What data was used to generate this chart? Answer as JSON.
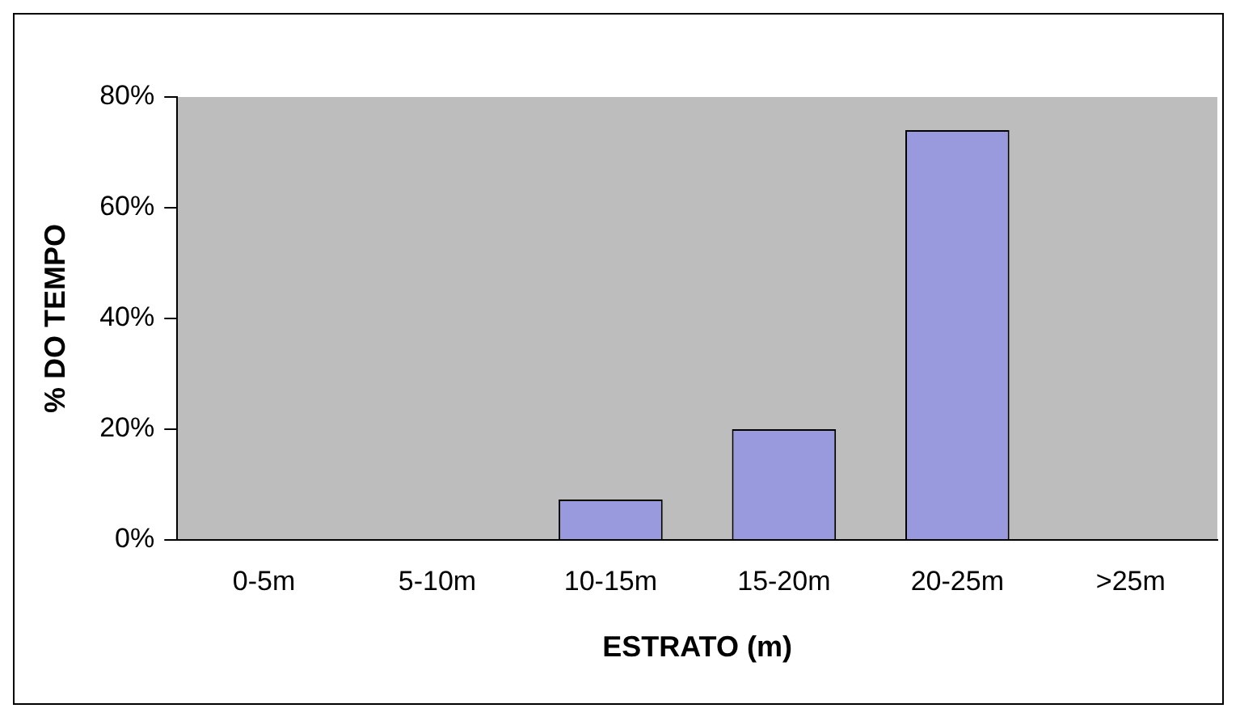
{
  "chart_data": {
    "type": "bar",
    "xlabel": "ESTRATO (m)",
    "ylabel": "% DO TEMPO",
    "categories": [
      "0-5m",
      "5-10m",
      "10-15m",
      "15-20m",
      "20-25m",
      ">25m"
    ],
    "values": [
      0,
      0,
      7.3,
      20,
      74,
      0
    ],
    "color": "#9999dd",
    "ylim": [
      0,
      80
    ],
    "yticks": [
      {
        "value": 0,
        "label": "0%"
      },
      {
        "value": 20,
        "label": "20%"
      },
      {
        "value": 40,
        "label": "40%"
      },
      {
        "value": 60,
        "label": "60%"
      },
      {
        "value": 80,
        "label": "80%"
      }
    ],
    "grid": false,
    "legend": false
  }
}
